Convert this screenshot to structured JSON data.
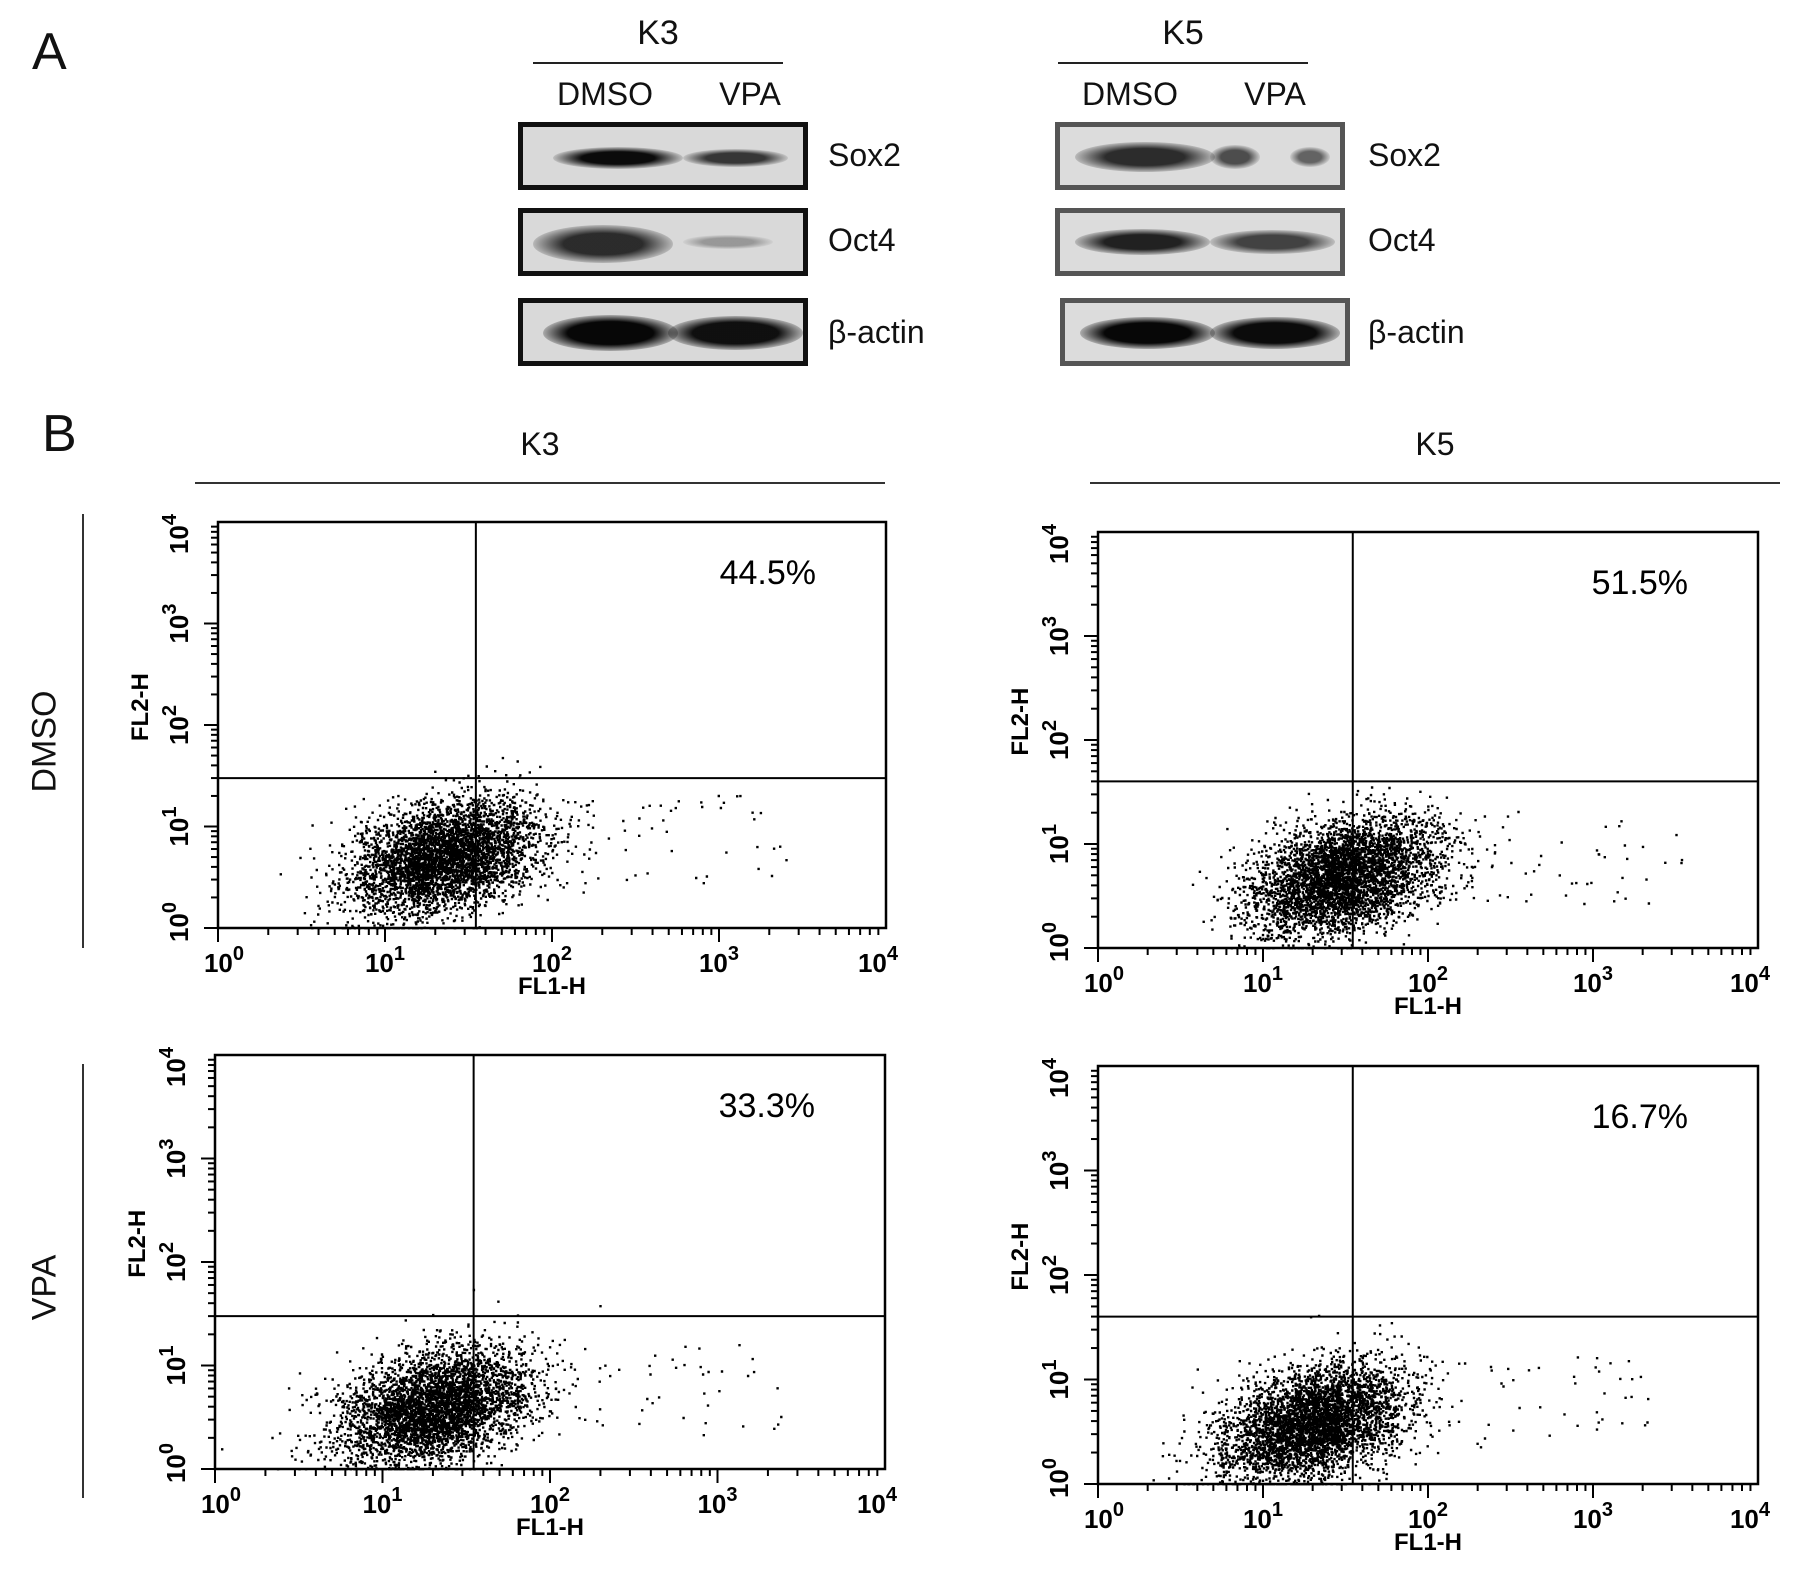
{
  "panel_a": {
    "letter": "A",
    "groups": [
      {
        "title": "K3",
        "lanes": [
          "DMSO",
          "VPA"
        ],
        "blots": [
          {
            "label": "Sox2",
            "bands": [
              {
                "lane": "DMSO",
                "intensity": 0.9
              },
              {
                "lane": "VPA",
                "intensity": 0.7
              }
            ]
          },
          {
            "label": "Oct4",
            "bands": [
              {
                "lane": "DMSO",
                "intensity": 0.8
              },
              {
                "lane": "VPA",
                "intensity": 0.25
              }
            ]
          },
          {
            "label": "β-actin",
            "bands": [
              {
                "lane": "DMSO",
                "intensity": 0.95
              },
              {
                "lane": "VPA",
                "intensity": 0.9
              }
            ]
          }
        ]
      },
      {
        "title": "K5",
        "lanes": [
          "DMSO",
          "VPA"
        ],
        "blots": [
          {
            "label": "Sox2",
            "bands": [
              {
                "lane": "DMSO",
                "intensity": 0.75
              },
              {
                "lane": "VPA",
                "intensity": 0.45
              }
            ]
          },
          {
            "label": "Oct4",
            "bands": [
              {
                "lane": "DMSO",
                "intensity": 0.8
              },
              {
                "lane": "VPA",
                "intensity": 0.65
              }
            ]
          },
          {
            "label": "β-actin",
            "bands": [
              {
                "lane": "DMSO",
                "intensity": 0.95
              },
              {
                "lane": "VPA",
                "intensity": 0.95
              }
            ]
          }
        ]
      }
    ]
  },
  "panel_b": {
    "letter": "B",
    "columns": [
      "K3",
      "K5"
    ],
    "rows": [
      "DMSO",
      "VPA"
    ]
  },
  "chart_data": [
    {
      "type": "scatter",
      "group": "K3",
      "condition": "DMSO",
      "xlabel": "FL1-H",
      "ylabel": "FL2-H",
      "xscale": "log",
      "yscale": "log",
      "xlim": [
        1,
        10000
      ],
      "ylim": [
        1,
        10000
      ],
      "x_tick_labels": [
        "10^0",
        "10^1",
        "10^2",
        "10^3",
        "10^4"
      ],
      "y_tick_labels": [
        "10^0",
        "10^1",
        "10^2",
        "10^3",
        "10^4"
      ],
      "gate": {
        "x": 35,
        "y": 30
      },
      "annotation": "44.5%",
      "cluster": {
        "x_center": 22,
        "y_center": 5
      }
    },
    {
      "type": "scatter",
      "group": "K5",
      "condition": "DMSO",
      "xlabel": "FL1-H",
      "ylabel": "FL2-H",
      "xscale": "log",
      "yscale": "log",
      "xlim": [
        1,
        10000
      ],
      "ylim": [
        1,
        10000
      ],
      "x_tick_labels": [
        "10^0",
        "10^1",
        "10^2",
        "10^3",
        "10^4"
      ],
      "y_tick_labels": [
        "10^0",
        "10^1",
        "10^2",
        "10^3",
        "10^4"
      ],
      "gate": {
        "x": 35,
        "y": 40
      },
      "annotation": "51.5%",
      "cluster": {
        "x_center": 30,
        "y_center": 5
      }
    },
    {
      "type": "scatter",
      "group": "K3",
      "condition": "VPA",
      "xlabel": "FL1-H",
      "ylabel": "FL2-H",
      "xscale": "log",
      "yscale": "log",
      "xlim": [
        1,
        10000
      ],
      "ylim": [
        1,
        10000
      ],
      "x_tick_labels": [
        "10^0",
        "10^1",
        "10^2",
        "10^3",
        "10^4"
      ],
      "y_tick_labels": [
        "10^0",
        "10^1",
        "10^2",
        "10^3",
        "10^4"
      ],
      "gate": {
        "x": 35,
        "y": 30
      },
      "annotation": "33.3%",
      "cluster": {
        "x_center": 20,
        "y_center": 4
      }
    },
    {
      "type": "scatter",
      "group": "K5",
      "condition": "VPA",
      "xlabel": "FL1-H",
      "ylabel": "FL2-H",
      "xscale": "log",
      "yscale": "log",
      "xlim": [
        1,
        10000
      ],
      "ylim": [
        1,
        10000
      ],
      "x_tick_labels": [
        "10^0",
        "10^1",
        "10^2",
        "10^3",
        "10^4"
      ],
      "y_tick_labels": [
        "10^0",
        "10^1",
        "10^2",
        "10^3",
        "10^4"
      ],
      "gate": {
        "x": 35,
        "y": 40
      },
      "annotation": "16.7%",
      "cluster": {
        "x_center": 20,
        "y_center": 4
      }
    }
  ]
}
